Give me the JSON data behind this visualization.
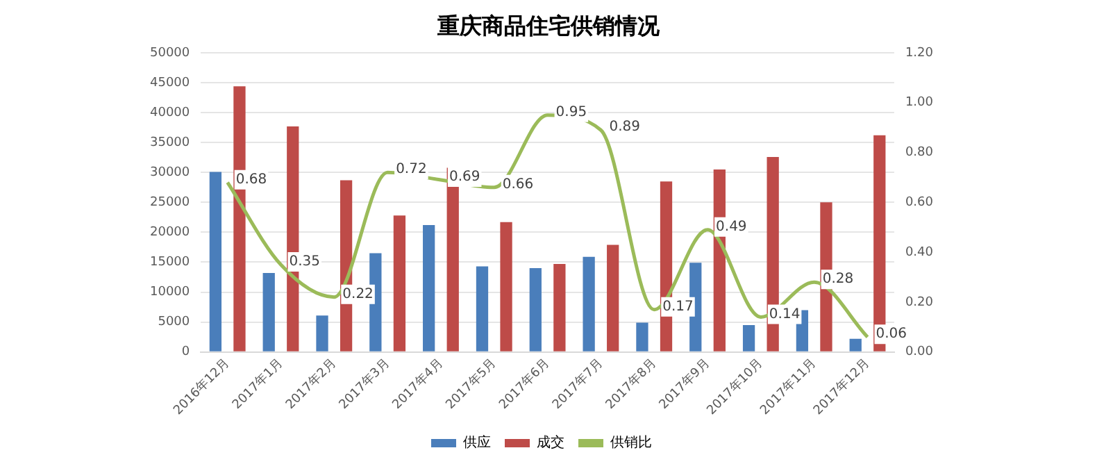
{
  "chart_data": {
    "type": "bar",
    "title": "重庆商品住宅供销情况",
    "categories": [
      "2016年12月",
      "2017年1月",
      "2017年2月",
      "2017年3月",
      "2017年4月",
      "2017年5月",
      "2017年6月",
      "2017年7月",
      "2017年8月",
      "2017年9月",
      "2017年10月",
      "2017年11月",
      "2017年12月"
    ],
    "series": [
      {
        "name": "供应",
        "color": "#4a7ebb",
        "values": [
          30100,
          13200,
          6100,
          16500,
          21200,
          14300,
          14000,
          15900,
          4900,
          14900,
          4500,
          7000,
          2200
        ]
      },
      {
        "name": "成交",
        "color": "#be4b48",
        "values": [
          44400,
          37700,
          28700,
          22800,
          30800,
          21700,
          14700,
          17900,
          28500,
          30500,
          32600,
          25000,
          36200
        ]
      },
      {
        "name": "供销比",
        "type": "line",
        "axis": "y2",
        "color": "#9bbb59",
        "marker": "none",
        "values": [
          0.68,
          0.35,
          0.22,
          0.72,
          0.69,
          0.66,
          0.95,
          0.89,
          0.17,
          0.49,
          0.14,
          0.28,
          0.06
        ],
        "value_labels": [
          "0.68",
          "0.35",
          "0.22",
          "0.72",
          "0.69",
          "0.66",
          "0.95",
          "0.89",
          "0.17",
          "0.49",
          "0.14",
          "0.28",
          "0.06"
        ]
      }
    ],
    "ylim": [
      0,
      50000
    ],
    "yticks": [
      0,
      5000,
      10000,
      15000,
      20000,
      25000,
      30000,
      35000,
      40000,
      45000,
      50000
    ],
    "y2lim": [
      0,
      1.2
    ],
    "y2ticks": [
      {
        "value": 0,
        "label": "0.00"
      },
      {
        "value": 0.2,
        "label": "0.20"
      },
      {
        "value": 0.4,
        "label": "0.40"
      },
      {
        "value": 0.6,
        "label": "0.60"
      },
      {
        "value": 0.8,
        "label": "0.80"
      },
      {
        "value": 1,
        "label": "1.00"
      },
      {
        "value": 1.2,
        "label": "1.20"
      }
    ],
    "grid": "y",
    "legend": "bottom"
  }
}
